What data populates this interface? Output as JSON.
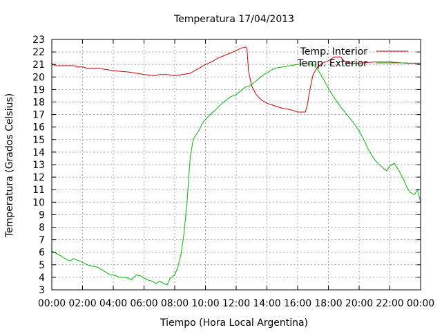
{
  "chart_data": {
    "type": "line",
    "title": "Temperatura 17/04/2013",
    "xlabel": "Tiempo (Hora Local Argentina)",
    "ylabel": "Temperatura (Grados Celsius)",
    "xlim": [
      0,
      24
    ],
    "ylim": [
      3,
      23
    ],
    "xticks": [
      "00:00",
      "02:00",
      "04:00",
      "06:00",
      "08:00",
      "10:00",
      "12:00",
      "14:00",
      "16:00",
      "18:00",
      "20:00",
      "22:00",
      "00:00"
    ],
    "yticks": [
      3,
      4,
      5,
      6,
      7,
      8,
      9,
      10,
      11,
      12,
      13,
      14,
      15,
      16,
      17,
      18,
      19,
      20,
      21,
      22,
      23
    ],
    "grid": true,
    "legend_position": "top-right",
    "x_unit": "hours since 00:00",
    "series": [
      {
        "name": "Temp. Interior",
        "color": "#cc0000",
        "points": [
          [
            0,
            21.1
          ],
          [
            0.2,
            20.9
          ],
          [
            1,
            20.9
          ],
          [
            1.5,
            20.9
          ],
          [
            1.6,
            20.8
          ],
          [
            2,
            20.8
          ],
          [
            2.3,
            20.7
          ],
          [
            3,
            20.7
          ],
          [
            3.5,
            20.6
          ],
          [
            4,
            20.5
          ],
          [
            5,
            20.4
          ],
          [
            5.5,
            20.3
          ],
          [
            6,
            20.2
          ],
          [
            6.7,
            20.1
          ],
          [
            7,
            20.2
          ],
          [
            7.5,
            20.2
          ],
          [
            8,
            20.1
          ],
          [
            8.5,
            20.2
          ],
          [
            9,
            20.3
          ],
          [
            9.3,
            20.5
          ],
          [
            9.6,
            20.7
          ],
          [
            10,
            21.0
          ],
          [
            10.4,
            21.2
          ],
          [
            10.8,
            21.5
          ],
          [
            11.2,
            21.7
          ],
          [
            11.6,
            21.9
          ],
          [
            12,
            22.1
          ],
          [
            12.3,
            22.3
          ],
          [
            12.6,
            22.4
          ],
          [
            12.7,
            22.3
          ],
          [
            12.8,
            20.5
          ],
          [
            13,
            19.3
          ],
          [
            13.3,
            18.6
          ],
          [
            13.6,
            18.2
          ],
          [
            14,
            17.9
          ],
          [
            14.5,
            17.7
          ],
          [
            15,
            17.5
          ],
          [
            15.5,
            17.4
          ],
          [
            16,
            17.2
          ],
          [
            16.5,
            17.2
          ],
          [
            16.6,
            17.6
          ],
          [
            16.8,
            19.0
          ],
          [
            17,
            20.2
          ],
          [
            17.3,
            20.8
          ],
          [
            17.6,
            21.1
          ],
          [
            18,
            21.3
          ],
          [
            18.4,
            21.6
          ],
          [
            18.8,
            21.6
          ],
          [
            19,
            21.3
          ],
          [
            19.4,
            21.1
          ],
          [
            20,
            21.1
          ],
          [
            21,
            21.2
          ],
          [
            22,
            21.2
          ],
          [
            23,
            21.1
          ],
          [
            24,
            21.1
          ]
        ]
      },
      {
        "name": "Temp. Exterior",
        "color": "#00bb00",
        "points": [
          [
            0,
            6.1
          ],
          [
            0.3,
            5.9
          ],
          [
            0.6,
            5.7
          ],
          [
            1,
            5.4
          ],
          [
            1.2,
            5.3
          ],
          [
            1.4,
            5.5
          ],
          [
            1.6,
            5.4
          ],
          [
            2,
            5.2
          ],
          [
            2.3,
            5.0
          ],
          [
            2.6,
            4.9
          ],
          [
            3,
            4.8
          ],
          [
            3.4,
            4.5
          ],
          [
            3.8,
            4.2
          ],
          [
            4,
            4.2
          ],
          [
            4.4,
            4.0
          ],
          [
            4.8,
            4.0
          ],
          [
            5.2,
            3.8
          ],
          [
            5.5,
            4.2
          ],
          [
            5.8,
            4.1
          ],
          [
            6.2,
            3.8
          ],
          [
            6.5,
            3.7
          ],
          [
            6.8,
            3.5
          ],
          [
            7,
            3.7
          ],
          [
            7.3,
            3.5
          ],
          [
            7.5,
            3.4
          ],
          [
            7.7,
            3.9
          ],
          [
            8,
            4.2
          ],
          [
            8.2,
            4.8
          ],
          [
            8.4,
            5.8
          ],
          [
            8.6,
            7.5
          ],
          [
            8.8,
            10.0
          ],
          [
            9,
            13.5
          ],
          [
            9.2,
            15.0
          ],
          [
            9.4,
            15.4
          ],
          [
            9.6,
            15.8
          ],
          [
            9.8,
            16.3
          ],
          [
            10,
            16.6
          ],
          [
            10.3,
            17.0
          ],
          [
            10.6,
            17.3
          ],
          [
            11,
            17.8
          ],
          [
            11.3,
            18.1
          ],
          [
            11.6,
            18.4
          ],
          [
            12,
            18.6
          ],
          [
            12.3,
            18.9
          ],
          [
            12.6,
            19.2
          ],
          [
            12.9,
            19.3
          ],
          [
            13.2,
            19.6
          ],
          [
            13.5,
            19.9
          ],
          [
            13.8,
            20.2
          ],
          [
            14.1,
            20.4
          ],
          [
            14.5,
            20.7
          ],
          [
            15,
            20.8
          ],
          [
            15.5,
            20.9
          ],
          [
            16,
            21.0
          ],
          [
            16.5,
            21.1
          ],
          [
            17,
            21.0
          ],
          [
            17.3,
            20.6
          ],
          [
            17.6,
            20.0
          ],
          [
            18,
            19.1
          ],
          [
            18.4,
            18.3
          ],
          [
            18.8,
            17.6
          ],
          [
            19.2,
            17.0
          ],
          [
            19.6,
            16.4
          ],
          [
            20,
            15.7
          ],
          [
            20.3,
            15.0
          ],
          [
            20.6,
            14.2
          ],
          [
            21,
            13.4
          ],
          [
            21.3,
            13.0
          ],
          [
            21.6,
            12.7
          ],
          [
            21.8,
            12.5
          ],
          [
            22,
            12.9
          ],
          [
            22.3,
            13.1
          ],
          [
            22.6,
            12.5
          ],
          [
            22.9,
            11.8
          ],
          [
            23.1,
            11.2
          ],
          [
            23.3,
            10.8
          ],
          [
            23.6,
            10.6
          ],
          [
            23.8,
            11.0
          ],
          [
            24,
            10.0
          ]
        ]
      }
    ]
  }
}
